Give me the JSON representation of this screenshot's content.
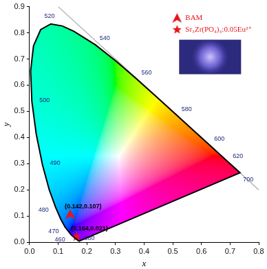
{
  "chart_data": {
    "type": "scatter",
    "xlabel": "x",
    "ylabel": "y",
    "xlim": [
      0,
      0.8
    ],
    "xticks": [
      {
        "value": 0,
        "label": "0.0"
      },
      0.1,
      0.2,
      0.3,
      0.4,
      0.5,
      0.6,
      0.7,
      0.8
    ],
    "ylim": [
      0,
      0.9
    ],
    "yticks": [
      {
        "value": 0,
        "label": "0.0"
      },
      0.1,
      0.2,
      0.3,
      0.4,
      0.5,
      0.6,
      0.7,
      0.8,
      0.9
    ],
    "grid": false,
    "legend": "upper right",
    "series": [
      {
        "type": "line",
        "color": "#000000",
        "x": [
          0.1741,
          0.1733,
          0.1714,
          0.1644,
          0.1566,
          0.144,
          0.1241,
          0.1096,
          0.0913,
          0.0687,
          0.0454,
          0.0235,
          0.0082,
          0.0039,
          0.0139,
          0.0389,
          0.0743,
          0.1142,
          0.1547,
          0.2296,
          0.3016,
          0.3731,
          0.4441,
          0.5125,
          0.5752,
          0.627,
          0.6658,
          0.6915,
          0.719,
          0.73,
          0.7347,
          0.1741
        ],
        "y": [
          0.005,
          0.0048,
          0.0051,
          0.0109,
          0.0177,
          0.0297,
          0.0578,
          0.0868,
          0.1327,
          0.2007,
          0.295,
          0.4127,
          0.5384,
          0.6548,
          0.7502,
          0.812,
          0.8338,
          0.8262,
          0.8059,
          0.7543,
          0.6923,
          0.6245,
          0.5547,
          0.4866,
          0.4242,
          0.3725,
          0.334,
          0.3083,
          0.2809,
          0.27,
          0.2653,
          0.005
        ],
        "labels": [
          "380",
          null,
          null,
          null,
          null,
          "460",
          "470",
          null,
          "480",
          null,
          "490",
          null,
          "500",
          null,
          null,
          null,
          "520",
          null,
          null,
          "540",
          null,
          "560",
          null,
          "580",
          null,
          "600",
          null,
          "620",
          null,
          null,
          "700",
          null
        ]
      },
      {
        "type": "line",
        "color": "#a6a6a6",
        "x": [
          0.1,
          0.8
        ],
        "y": [
          0.9,
          0.2
        ]
      },
      {
        "name": "BAM",
        "type": "scatter",
        "marker": "triangle",
        "color": "#e8141b",
        "x": [
          0.142
        ],
        "y": [
          0.107
        ],
        "value_labels": [
          "(0.142,0.107)"
        ],
        "data_labels": true
      },
      {
        "name": "Sr₃Zr(PO₄)₃:0.05Eu²⁺",
        "type": "scatter",
        "marker": "star",
        "color": "#e8141b",
        "x": [
          0.164
        ],
        "y": [
          0.021
        ],
        "value_labels": [
          "(0.164,0.021)"
        ],
        "data_labels": true
      }
    ]
  }
}
